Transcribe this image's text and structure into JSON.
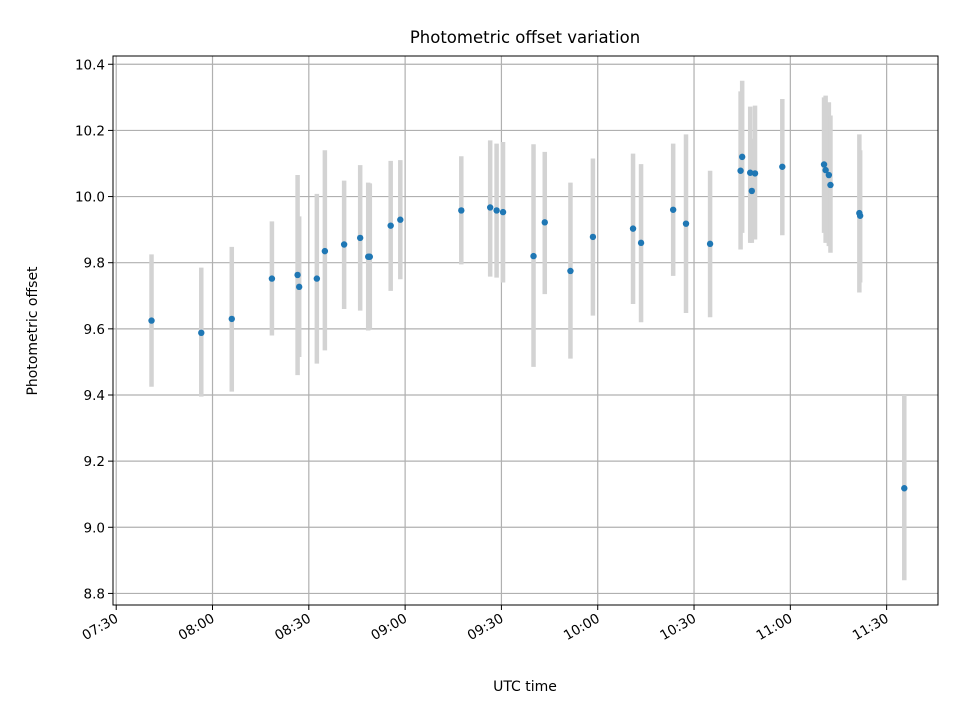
{
  "chart_data": {
    "type": "scatter",
    "title": "Photometric offset variation",
    "xlabel": "UTC time",
    "ylabel": "Photometric offset",
    "xlim": [
      "07:29",
      "11:46"
    ],
    "ylim": [
      8.765,
      10.425
    ],
    "x_ticks": [
      "07:30",
      "08:00",
      "08:30",
      "09:00",
      "09:30",
      "10:00",
      "10:30",
      "11:00",
      "11:30"
    ],
    "y_ticks": [
      "8.8",
      "9.0",
      "9.2",
      "9.4",
      "9.6",
      "9.8",
      "10.0",
      "10.2",
      "10.4"
    ],
    "grid": true,
    "colors": {
      "point": "#1f77b4",
      "errorbar": "#d3d3d3",
      "grid": "#b0b0b0"
    },
    "points": [
      {
        "time": "07:41:00",
        "y": 9.625,
        "lo": 9.425,
        "hi": 9.825
      },
      {
        "time": "07:56:30",
        "y": 9.588,
        "lo": 9.395,
        "hi": 9.785
      },
      {
        "time": "08:06:00",
        "y": 9.63,
        "lo": 9.41,
        "hi": 9.848
      },
      {
        "time": "08:18:30",
        "y": 9.752,
        "lo": 9.58,
        "hi": 9.925
      },
      {
        "time": "08:26:30",
        "y": 9.763,
        "lo": 9.46,
        "hi": 10.065
      },
      {
        "time": "08:27:00",
        "y": 9.727,
        "lo": 9.515,
        "hi": 9.94
      },
      {
        "time": "08:32:30",
        "y": 9.752,
        "lo": 9.495,
        "hi": 10.008
      },
      {
        "time": "08:35:00",
        "y": 9.835,
        "lo": 9.535,
        "hi": 10.14
      },
      {
        "time": "08:41:00",
        "y": 9.855,
        "lo": 9.66,
        "hi": 10.048
      },
      {
        "time": "08:46:00",
        "y": 9.875,
        "lo": 9.655,
        "hi": 10.095
      },
      {
        "time": "08:48:30",
        "y": 9.818,
        "lo": 9.595,
        "hi": 10.042
      },
      {
        "time": "08:49:00",
        "y": 9.818,
        "lo": 9.6,
        "hi": 10.04
      },
      {
        "time": "08:55:30",
        "y": 9.912,
        "lo": 9.715,
        "hi": 10.108
      },
      {
        "time": "08:58:30",
        "y": 9.93,
        "lo": 9.75,
        "hi": 10.11
      },
      {
        "time": "09:17:30",
        "y": 9.958,
        "lo": 9.795,
        "hi": 10.122
      },
      {
        "time": "09:26:30",
        "y": 9.967,
        "lo": 9.758,
        "hi": 10.17
      },
      {
        "time": "09:28:30",
        "y": 9.958,
        "lo": 9.755,
        "hi": 10.16
      },
      {
        "time": "09:30:30",
        "y": 9.953,
        "lo": 9.74,
        "hi": 10.165
      },
      {
        "time": "09:40:00",
        "y": 9.82,
        "lo": 9.485,
        "hi": 10.158
      },
      {
        "time": "09:43:30",
        "y": 9.922,
        "lo": 9.705,
        "hi": 10.135
      },
      {
        "time": "09:51:30",
        "y": 9.775,
        "lo": 9.51,
        "hi": 10.042
      },
      {
        "time": "09:58:30",
        "y": 9.878,
        "lo": 9.64,
        "hi": 10.115
      },
      {
        "time": "10:11:00",
        "y": 9.903,
        "lo": 9.675,
        "hi": 10.13
      },
      {
        "time": "10:13:30",
        "y": 9.86,
        "lo": 9.62,
        "hi": 10.098
      },
      {
        "time": "10:23:30",
        "y": 9.96,
        "lo": 9.76,
        "hi": 10.16
      },
      {
        "time": "10:27:30",
        "y": 9.918,
        "lo": 9.648,
        "hi": 10.188
      },
      {
        "time": "10:35:00",
        "y": 9.857,
        "lo": 9.635,
        "hi": 10.078
      },
      {
        "time": "10:44:30",
        "y": 10.078,
        "lo": 9.84,
        "hi": 10.318
      },
      {
        "time": "10:45:00",
        "y": 10.12,
        "lo": 9.89,
        "hi": 10.35
      },
      {
        "time": "10:47:30",
        "y": 10.072,
        "lo": 9.86,
        "hi": 10.272
      },
      {
        "time": "10:48:00",
        "y": 10.017,
        "lo": 9.86,
        "hi": 10.175
      },
      {
        "time": "10:49:00",
        "y": 10.07,
        "lo": 9.87,
        "hi": 10.275
      },
      {
        "time": "10:57:30",
        "y": 10.09,
        "lo": 9.883,
        "hi": 10.295
      },
      {
        "time": "11:10:30",
        "y": 10.097,
        "lo": 9.89,
        "hi": 10.3
      },
      {
        "time": "11:11:00",
        "y": 10.08,
        "lo": 9.86,
        "hi": 10.305
      },
      {
        "time": "11:12:00",
        "y": 10.065,
        "lo": 9.85,
        "hi": 10.285
      },
      {
        "time": "11:12:30",
        "y": 10.035,
        "lo": 9.83,
        "hi": 10.245
      },
      {
        "time": "11:21:30",
        "y": 9.95,
        "lo": 9.71,
        "hi": 10.188
      },
      {
        "time": "11:21:45",
        "y": 9.942,
        "lo": 9.74,
        "hi": 10.14
      },
      {
        "time": "11:35:30",
        "y": 9.118,
        "lo": 8.84,
        "hi": 9.4
      }
    ]
  }
}
